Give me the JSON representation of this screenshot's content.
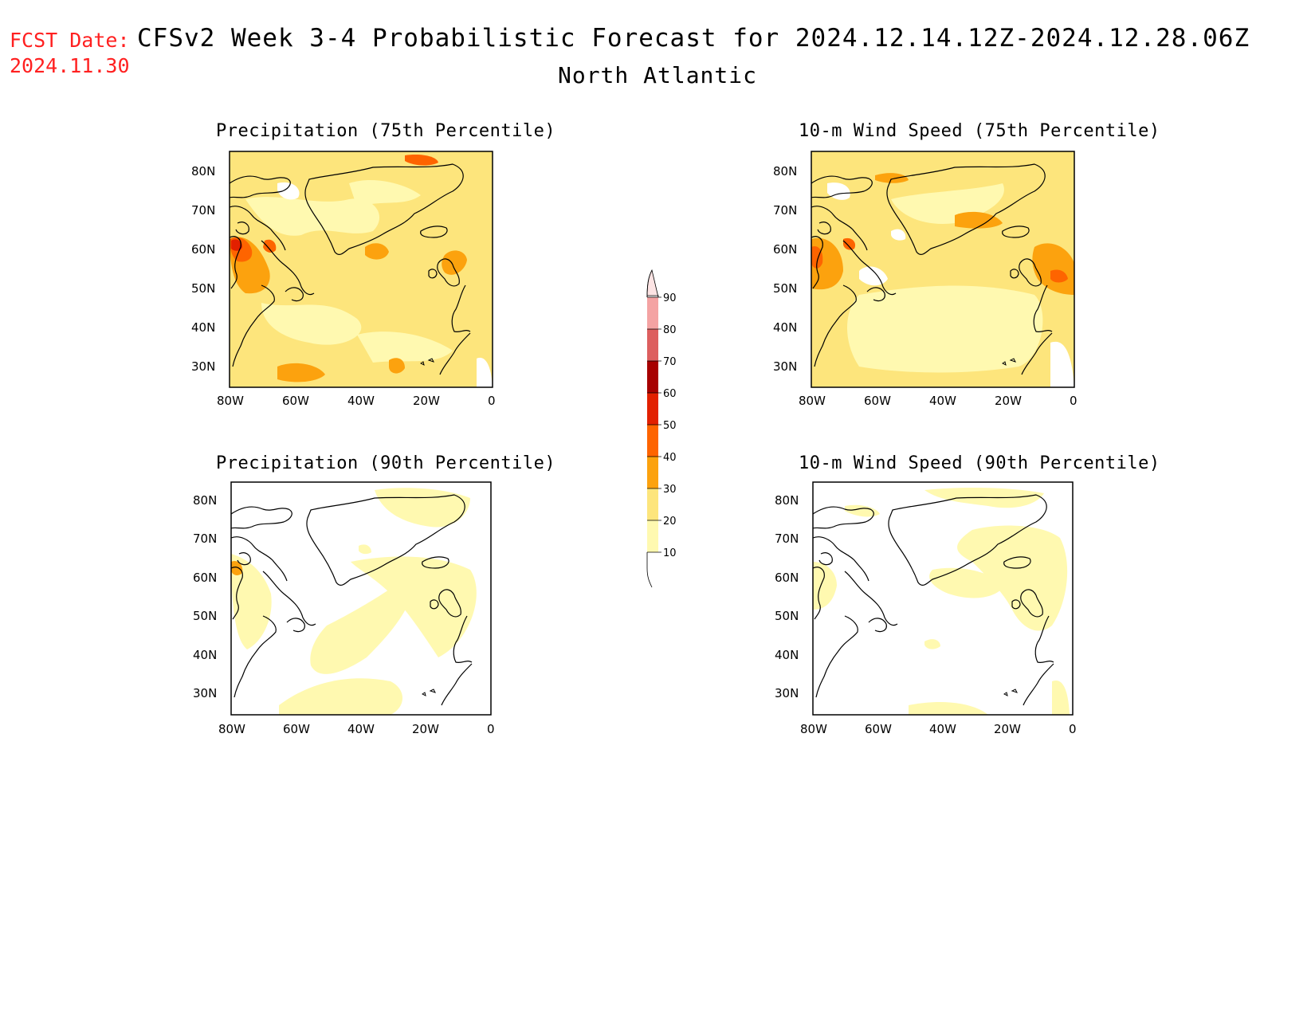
{
  "header": {
    "fcst_label": "FCST Date:",
    "fcst_date": "2024.11.30",
    "title": "CFSv2 Week 3-4 Probabilistic Forecast for 2024.12.14.12Z-2024.12.28.06Z",
    "subtitle": "North Atlantic"
  },
  "colors": {
    "c10": "#fff9b0",
    "c20": "#fde57c",
    "c30": "#fca20e",
    "c40": "#fe6400",
    "c50": "#e22000",
    "c60": "#a70000",
    "c70": "#dd5f5f",
    "c80": "#f4a3a3",
    "c90": "#fde4e4"
  },
  "panels": [
    {
      "id": "precip-75",
      "title": "Precipitation (75th Percentile)"
    },
    {
      "id": "wind-75",
      "title": "10-m Wind Speed (75th Percentile)"
    },
    {
      "id": "precip-90",
      "title": "Precipitation (90th Percentile)"
    },
    {
      "id": "wind-90",
      "title": "10-m Wind Speed (90th Percentile)"
    }
  ],
  "axes": {
    "lat_labels": [
      "80N",
      "70N",
      "60N",
      "50N",
      "40N",
      "30N"
    ],
    "lon_labels": [
      "80W",
      "60W",
      "40W",
      "20W",
      "0"
    ]
  },
  "colorbar": {
    "labels": [
      "90",
      "80",
      "70",
      "60",
      "50",
      "40",
      "30",
      "20",
      "10"
    ]
  }
}
